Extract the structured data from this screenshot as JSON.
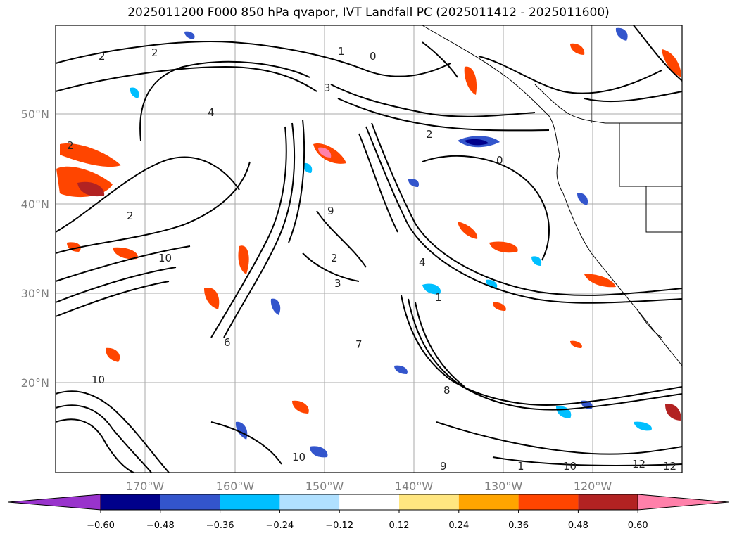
{
  "title": "2025011200 F000 850 hPa qvapor, IVT Landfall PC (2025011412 - 2025011600)",
  "latitude_labels": [
    "50°N",
    "40°N",
    "30°N",
    "20°N"
  ],
  "longitude_labels": [
    "170°W",
    "160°W",
    "150°W",
    "140°W",
    "130°W",
    "120°W"
  ],
  "colorbar": {
    "tick_labels": [
      "−0.60",
      "−0.48",
      "−0.36",
      "−0.24",
      "−0.12",
      "0.12",
      "0.24",
      "0.36",
      "0.48",
      "0.60"
    ],
    "colors": [
      "#9933cc",
      "#00008b",
      "#3355cc",
      "#00bfff",
      "#b0e0ff",
      "#ffffff",
      "#ffe680",
      "#ffa500",
      "#ff4500",
      "#b22222",
      "#ff80aa"
    ]
  },
  "contour_labels": [
    "2",
    "2",
    "0",
    "1",
    "4",
    "2",
    "3",
    "0",
    "2",
    "9",
    "2",
    "2",
    "10",
    "3",
    "6",
    "4",
    "7",
    "10",
    "1",
    "8",
    "9",
    "10",
    "12",
    "12",
    "1",
    "10"
  ]
}
